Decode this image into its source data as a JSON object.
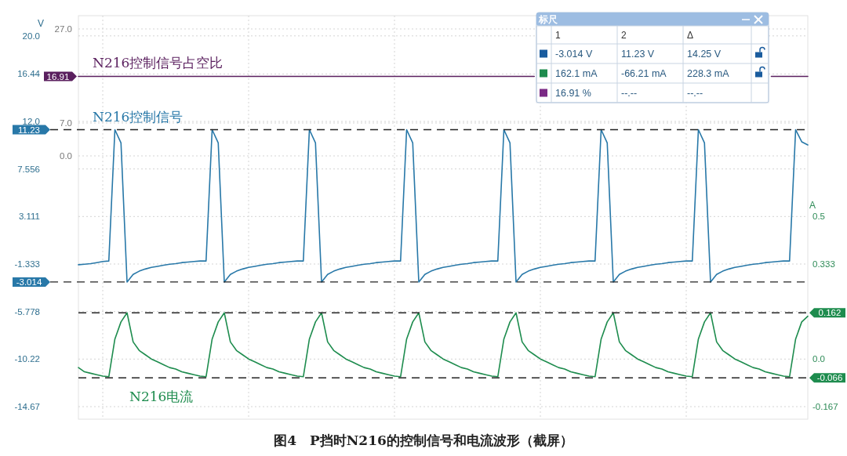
{
  "chart_data": [
    {
      "type": "line",
      "title": "图4　P挡时N216的控制信号和电流波形（截屏）",
      "ylabel": "V",
      "y2label": "A",
      "categories": [
        null,
        null,
        null,
        null,
        null,
        null,
        null,
        null,
        null,
        null,
        null,
        null,
        null,
        null,
        null,
        null,
        null,
        null,
        null,
        null,
        null,
        null,
        null,
        null,
        null,
        null,
        null,
        null,
        null,
        null,
        null,
        null,
        null,
        null,
        null,
        null,
        null,
        null,
        null,
        null,
        null,
        null,
        null,
        null,
        null,
        null,
        null,
        null,
        null,
        null,
        null,
        null,
        null,
        null,
        null,
        null,
        null,
        null,
        null,
        null,
        null,
        null,
        null,
        null,
        null,
        null,
        null,
        null,
        null,
        null,
        null,
        null,
        null,
        null,
        null,
        null,
        null,
        null,
        null,
        null,
        null,
        null,
        null,
        null,
        null,
        null,
        null,
        null,
        null,
        null,
        null,
        null,
        null,
        null,
        null,
        null,
        null,
        null,
        null,
        null,
        null,
        null,
        null,
        null,
        null,
        null,
        null,
        null,
        null,
        null,
        null,
        null,
        null,
        null,
        null,
        null,
        null,
        null,
        null,
        null,
        null
      ],
      "ylim": [
        -15.84,
        21.89
      ],
      "yticks": [
        {
          "value": 20,
          "label": "20.0"
        },
        16.44,
        {
          "value": 12,
          "label": "12.0"
        },
        7.556,
        3.111,
        -1.333,
        -5.778,
        -10.22,
        -14.67
      ],
      "y2lim": [
        -0.211,
        1.204
      ],
      "y2ticks": [
        0.5,
        0.333,
        {
          "value": 0,
          "label": "0.0"
        },
        -0.167
      ],
      "y3lim": [
        -56,
        29.83
      ],
      "y3ticks": [
        {
          "value": 27,
          "label": "27.0"
        },
        {
          "value": 7,
          "label": "7.0"
        },
        {
          "value": 0,
          "label": "0.0"
        }
      ],
      "grid": true,
      "series": [
        {
          "name": "N216控制信号",
          "color": "#2878a8",
          "axis": "y",
          "values": [
            -1.4,
            -1.35,
            -1.3,
            -1.2,
            -1.1,
            -1.05,
            11.23,
            10.0,
            -3.014,
            -2.3,
            -2.0,
            -1.8,
            -1.65,
            -1.55,
            -1.45,
            -1.35,
            -1.3,
            -1.2,
            -1.15,
            -1.1,
            -1.05,
            -1.05,
            11.23,
            10.0,
            -3.014,
            -2.3,
            -2.0,
            -1.8,
            -1.65,
            -1.55,
            -1.45,
            -1.35,
            -1.3,
            -1.2,
            -1.15,
            -1.1,
            -1.05,
            -1.05,
            11.23,
            10.0,
            -3.014,
            -2.3,
            -2.0,
            -1.8,
            -1.65,
            -1.55,
            -1.45,
            -1.35,
            -1.3,
            -1.2,
            -1.15,
            -1.1,
            -1.05,
            -1.05,
            11.23,
            10.0,
            -3.014,
            -2.3,
            -2.0,
            -1.8,
            -1.65,
            -1.55,
            -1.45,
            -1.35,
            -1.3,
            -1.2,
            -1.15,
            -1.1,
            -1.05,
            -1.05,
            11.23,
            10.0,
            -3.014,
            -2.3,
            -2.0,
            -1.8,
            -1.65,
            -1.55,
            -1.45,
            -1.35,
            -1.3,
            -1.2,
            -1.15,
            -1.1,
            -1.05,
            -1.05,
            11.23,
            10.0,
            -3.014,
            -2.3,
            -2.0,
            -1.8,
            -1.65,
            -1.55,
            -1.45,
            -1.35,
            -1.3,
            -1.2,
            -1.15,
            -1.1,
            -1.05,
            -1.05,
            11.23,
            10.0,
            -3.014,
            -2.3,
            -2.0,
            -1.8,
            -1.65,
            -1.55,
            -1.45,
            -1.35,
            -1.3,
            -1.2,
            -1.15,
            -1.1,
            -1.05,
            -1.05,
            11.23,
            10.1,
            9.8
          ]
        },
        {
          "name": "N216电流",
          "color": "#1e8c4e",
          "axis": "y2",
          "values": [
            -0.03,
            -0.045,
            -0.05,
            -0.055,
            -0.06,
            -0.062,
            0.07,
            0.13,
            0.162,
            0.06,
            0.03,
            0.015,
            0.0,
            -0.01,
            -0.02,
            -0.03,
            -0.035,
            -0.045,
            -0.05,
            -0.055,
            -0.06,
            -0.062,
            0.07,
            0.13,
            0.162,
            0.06,
            0.03,
            0.015,
            0.0,
            -0.01,
            -0.02,
            -0.03,
            -0.035,
            -0.045,
            -0.05,
            -0.055,
            -0.06,
            -0.062,
            0.07,
            0.13,
            0.162,
            0.06,
            0.03,
            0.015,
            0.0,
            -0.01,
            -0.02,
            -0.03,
            -0.035,
            -0.045,
            -0.05,
            -0.055,
            -0.06,
            -0.062,
            0.07,
            0.13,
            0.162,
            0.06,
            0.03,
            0.015,
            0.0,
            -0.01,
            -0.02,
            -0.03,
            -0.035,
            -0.045,
            -0.05,
            -0.055,
            -0.06,
            -0.062,
            0.07,
            0.13,
            0.162,
            0.06,
            0.03,
            0.015,
            0.0,
            -0.01,
            -0.02,
            -0.03,
            -0.035,
            -0.045,
            -0.05,
            -0.055,
            -0.06,
            -0.062,
            0.07,
            0.13,
            0.162,
            0.06,
            0.03,
            0.015,
            0.0,
            -0.01,
            -0.02,
            -0.03,
            -0.035,
            -0.045,
            -0.05,
            -0.055,
            -0.06,
            -0.062,
            0.07,
            0.13,
            0.162,
            0.06,
            0.03,
            0.015,
            0.0,
            -0.01,
            -0.02,
            -0.03,
            -0.035,
            -0.045,
            -0.05,
            -0.055,
            -0.06,
            -0.062,
            0.07,
            0.13,
            0.15
          ]
        },
        {
          "name": "N216控制信号占空比",
          "color": "#5a1f5e",
          "axis": "y3",
          "values": [
            16.91,
            16.91,
            16.91,
            16.91,
            16.91,
            16.91,
            16.91,
            16.91,
            16.91,
            16.91,
            16.91,
            16.91,
            16.91,
            16.91,
            16.91,
            16.91,
            16.91,
            16.91,
            16.91,
            16.91,
            16.91,
            16.91,
            16.91,
            16.91,
            16.91,
            16.91,
            16.91,
            16.91,
            16.91,
            16.91,
            16.91,
            16.91,
            16.91,
            16.91,
            16.91,
            16.91,
            16.91,
            16.91,
            16.91,
            16.91,
            16.91,
            16.91,
            16.91,
            16.91,
            16.91,
            16.91,
            16.91,
            16.91,
            16.91,
            16.91,
            16.91,
            16.91,
            16.91,
            16.91,
            16.91,
            16.91,
            16.91,
            16.91,
            16.91,
            16.91,
            16.91,
            16.91,
            16.91,
            16.91,
            16.91,
            16.91,
            16.91,
            16.91,
            16.91,
            16.91,
            16.91,
            16.91,
            16.91,
            16.91,
            16.91,
            16.91,
            null,
            null,
            null,
            null,
            null,
            null,
            null,
            null,
            null,
            null,
            null,
            null,
            null,
            null,
            null,
            null,
            null,
            null,
            null,
            null,
            null,
            null,
            null,
            null,
            null,
            null,
            null,
            null,
            null,
            null,
            null,
            null,
            null,
            null,
            null,
            null,
            null,
            null,
            16.91,
            16.91,
            16.91,
            16.91,
            16.91,
            16.91,
            16.91
          ],
          "value_labels": [
            "16.91",
            null,
            null,
            null,
            null,
            null,
            null,
            null,
            null,
            null,
            null,
            null,
            null,
            null,
            null,
            null,
            null,
            null,
            null,
            null,
            null,
            null,
            null,
            null,
            null,
            null,
            null,
            null,
            null,
            null,
            null,
            null,
            null,
            null,
            null,
            null,
            null,
            null,
            null,
            null,
            null,
            null,
            null,
            null,
            null,
            null,
            null,
            null,
            null,
            null,
            null,
            null,
            null,
            null,
            null,
            null,
            null,
            null,
            null,
            null,
            null,
            null,
            null,
            null,
            null,
            null,
            null,
            null,
            null,
            null,
            null,
            null,
            null,
            null,
            null,
            null,
            null,
            null,
            null,
            null,
            null,
            null,
            null,
            null,
            null,
            null,
            null,
            null,
            null,
            null,
            null,
            null,
            null,
            null,
            null,
            null,
            null,
            null,
            null,
            null,
            null,
            null,
            null,
            null,
            null,
            null,
            null,
            null,
            null,
            null,
            null,
            null,
            null,
            null,
            null,
            null,
            null,
            null,
            null,
            null,
            null
          ]
        }
      ],
      "ref_lines": [
        {
          "axis": "y",
          "value": 11.23,
          "label": "11.23",
          "line_style": "dashed"
        },
        {
          "axis": "y",
          "value": -3.014,
          "label": "-3.014",
          "line_style": "dashed"
        },
        {
          "axis": "y2",
          "value": 0.162,
          "label": "0.162",
          "line_style": "dashed"
        },
        {
          "axis": "y2",
          "value": -0.066,
          "label": "-0.066",
          "line_style": "dashed"
        }
      ]
    },
    {
      "type": "other",
      "title": "标尺",
      "categories": [
        "1",
        "2",
        "Δ"
      ],
      "colors": [
        "#1a5c9e",
        "#1e8c4e",
        "#7b2a85"
      ],
      "annotations": [
        "-3.014 V",
        "11.23 V",
        "14.25 V",
        "162.1 mA",
        "-66.21 mA",
        "228.3 mA",
        "16.91 %",
        "--.--",
        "--.--"
      ]
    }
  ]
}
